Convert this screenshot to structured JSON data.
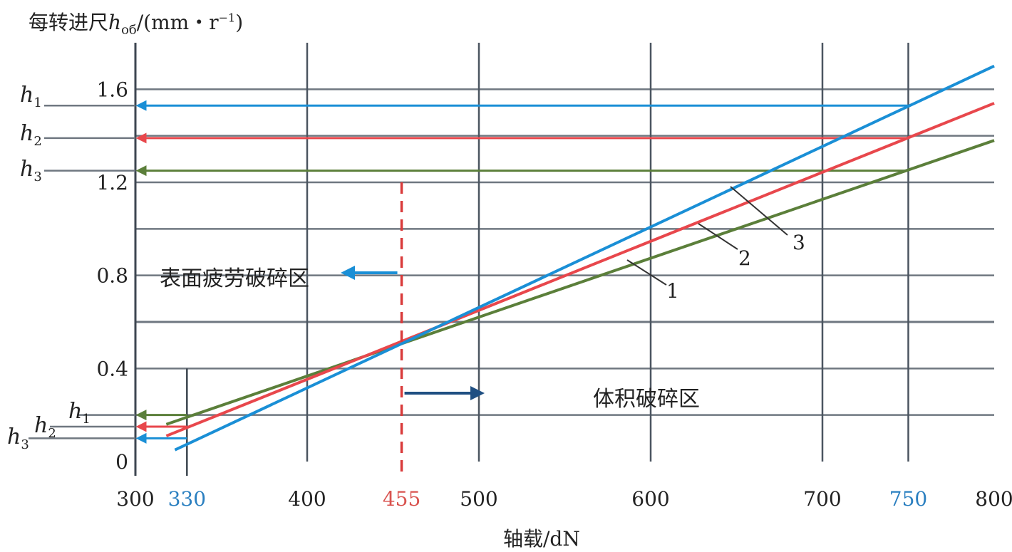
{
  "chart_data": {
    "type": "line",
    "ylabel": "每转进尺h<sub>об</sub>/(mm・r<sup>−1</sup>)",
    "ylabel_main": "每转进尺",
    "ylabel_sym": "h",
    "ylabel_sub": "об",
    "ylabel_unit": "/(mm・r",
    "ylabel_exp": "−1",
    "ylabel_close": ")",
    "xlabel": "轴载/dN",
    "xlim": [
      300,
      800
    ],
    "ylim": [
      0,
      1.8
    ],
    "x_ticks": [
      {
        "label": "300",
        "value": 300,
        "color": "#222222"
      },
      {
        "label": "330",
        "value": 330,
        "color": "#2a7fc0"
      },
      {
        "label": "400",
        "value": 400,
        "color": "#222222"
      },
      {
        "label": "455",
        "value": 455,
        "color": "#d9534f"
      },
      {
        "label": "500",
        "value": 500,
        "color": "#222222"
      },
      {
        "label": "600",
        "value": 600,
        "color": "#222222"
      },
      {
        "label": "700",
        "value": 700,
        "color": "#222222"
      },
      {
        "label": "750",
        "value": 750,
        "color": "#2a7fc0"
      },
      {
        "label": "800",
        "value": 800,
        "color": "#222222"
      }
    ],
    "y_ticks": [
      {
        "label": "0",
        "value": 0
      },
      {
        "label": "0.4",
        "value": 0.4
      },
      {
        "label": "0.8",
        "value": 0.8
      },
      {
        "label": "1.2",
        "value": 1.2
      },
      {
        "label": "1.6",
        "value": 1.6
      }
    ],
    "series": [
      {
        "name": "1",
        "color": "#5b7f3a",
        "x": [
          318,
          800
        ],
        "y": [
          0.16,
          1.38
        ]
      },
      {
        "name": "2",
        "color": "#e8474c",
        "x": [
          318,
          800
        ],
        "y": [
          0.11,
          1.54
        ]
      },
      {
        "name": "3",
        "color": "#1a8fd6",
        "x": [
          323,
          800
        ],
        "y": [
          0.05,
          1.7
        ]
      }
    ],
    "divider_x": 455,
    "divider_color": "#d93b3b",
    "zones": [
      {
        "label": "表面疲劳破碎区",
        "arrow_color": "#1a8fd6"
      },
      {
        "label": "体积破碎区",
        "arrow_color": "#1f4f82"
      }
    ],
    "h_markers_high": [
      {
        "sym": "h",
        "sub": "1",
        "y": 1.53,
        "color": "#1a8fd6"
      },
      {
        "sym": "h",
        "sub": "2",
        "y": 1.39,
        "color": "#e8474c"
      },
      {
        "sym": "h",
        "sub": "3",
        "y": 1.25,
        "color": "#5b7f3a"
      }
    ],
    "h_markers_low": [
      {
        "sym": "h",
        "sub": "1",
        "y": 0.2,
        "color": "#5b7f3a"
      },
      {
        "sym": "h",
        "sub": "2",
        "y": 0.15,
        "color": "#e8474c"
      },
      {
        "sym": "h",
        "sub": "3",
        "y": 0.1,
        "color": "#1a8fd6"
      }
    ],
    "grid": true
  }
}
